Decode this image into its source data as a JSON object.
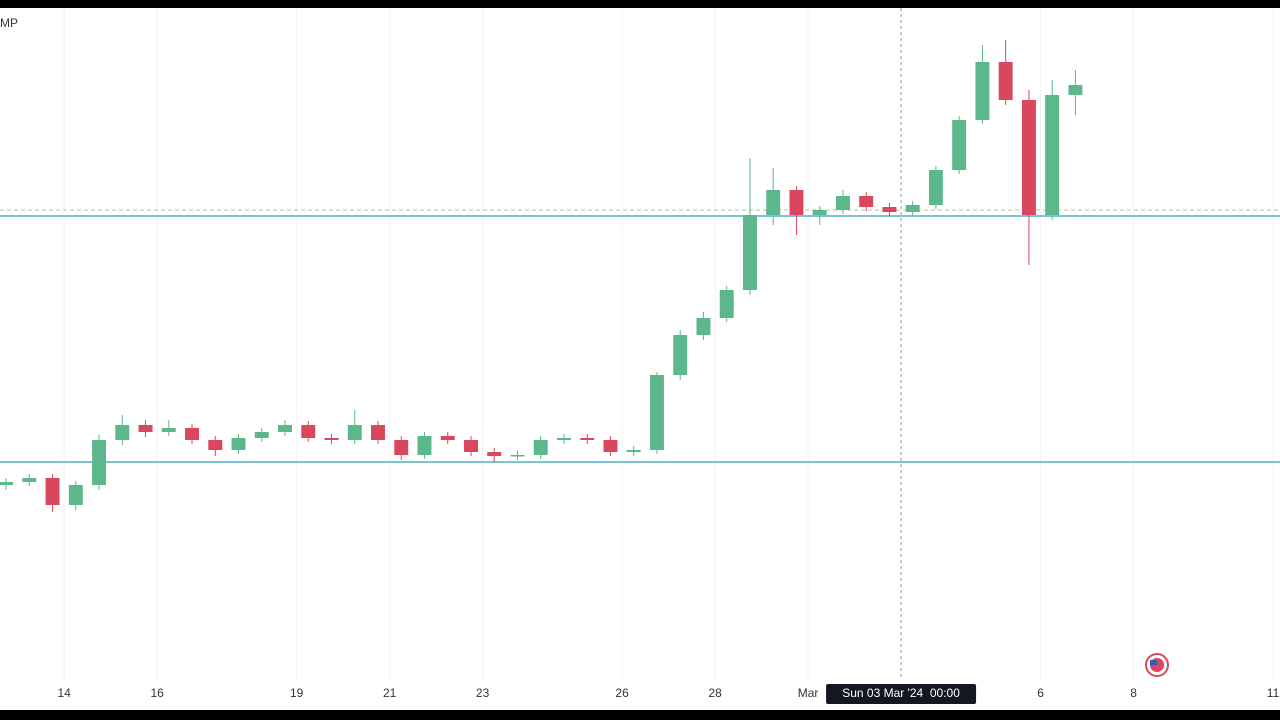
{
  "symbol_fragment": "MP",
  "chart_data": {
    "type": "candlestick",
    "x": [
      12.5,
      13,
      13.5,
      14,
      14.5,
      15,
      15.5,
      16,
      16.5,
      17,
      17.5,
      18,
      18.5,
      19,
      19.5,
      20,
      20.5,
      21,
      21.5,
      22,
      22.5,
      23,
      23.5,
      24,
      24.5,
      25,
      25.5,
      26,
      26.5,
      27,
      27.5,
      28,
      28.5,
      29,
      29.5,
      30,
      30.5,
      31,
      31.5,
      32,
      32.5,
      33,
      33.5,
      34,
      34.5,
      35,
      35.5
    ],
    "open": [
      195,
      198,
      202,
      175,
      195,
      240,
      255,
      248,
      252,
      240,
      230,
      242,
      248,
      255,
      242,
      240,
      255,
      240,
      225,
      244,
      240,
      228,
      224,
      225,
      240,
      242,
      240,
      228,
      230,
      305,
      345,
      362,
      390,
      465,
      490,
      465,
      470,
      484,
      473,
      468,
      475,
      510,
      560,
      618,
      580,
      465,
      585
    ],
    "high": [
      202,
      206,
      206,
      199,
      245,
      265,
      260,
      260,
      256,
      244,
      246,
      252,
      260,
      259,
      246,
      270,
      259,
      244,
      248,
      248,
      244,
      232,
      229,
      244,
      246,
      246,
      244,
      234,
      308,
      350,
      368,
      394,
      522,
      512,
      494,
      474,
      490,
      488,
      477,
      479,
      514,
      564,
      635,
      640,
      590,
      600,
      610
    ],
    "low": [
      190,
      194,
      168,
      170,
      190,
      235,
      243,
      244,
      236,
      224,
      226,
      238,
      244,
      238,
      236,
      236,
      236,
      220,
      221,
      236,
      224,
      218,
      220,
      221,
      236,
      236,
      224,
      224,
      226,
      300,
      340,
      358,
      385,
      455,
      445,
      455,
      466,
      469,
      464,
      464,
      471,
      506,
      556,
      575,
      415,
      460,
      565
    ],
    "close": [
      198,
      202,
      175,
      195,
      240,
      255,
      248,
      252,
      240,
      230,
      242,
      248,
      255,
      242,
      240,
      255,
      240,
      225,
      244,
      240,
      228,
      224,
      225,
      240,
      242,
      240,
      228,
      230,
      305,
      345,
      362,
      390,
      465,
      490,
      465,
      470,
      484,
      473,
      468,
      475,
      510,
      560,
      618,
      580,
      465,
      585,
      595
    ],
    "up_color": "#5cb88a",
    "down_color": "#d9475f",
    "xlim": [
      12.62,
      40.15
    ],
    "ylim": [
      0,
      670
    ],
    "xticks": [
      14,
      16,
      19,
      21,
      23,
      26,
      28,
      {
        "value": 30,
        "label": "Mar"
      },
      {
        "value": 35,
        "label": "6"
      },
      {
        "value": 37,
        "label": "8"
      },
      {
        "value": 40,
        "label": "11"
      }
    ],
    "levels": [
      464,
      218
    ],
    "level_color": "#7cc4cf",
    "price_line": 470,
    "crosshair": {
      "x": 32,
      "label": "Sun 03 Mar '24  00:00"
    },
    "grid": true
  }
}
